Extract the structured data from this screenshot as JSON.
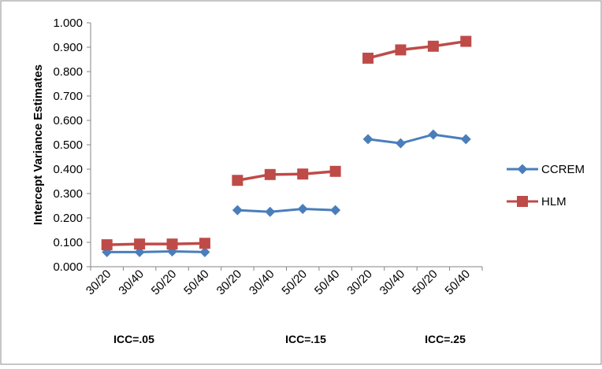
{
  "chart_data": {
    "type": "line",
    "ylabel": "Intercept Variance Estimates",
    "ylim": [
      0,
      1.0
    ],
    "yticks": [
      "0.000",
      "0.100",
      "0.200",
      "0.300",
      "0.400",
      "0.500",
      "0.600",
      "0.700",
      "0.800",
      "0.900",
      "1.000"
    ],
    "grid": false,
    "legend_position": "right",
    "groups": [
      "ICC=.05",
      "ICC=.15",
      "ICC=.25"
    ],
    "categories": [
      "30/20",
      "30/40",
      "50/20",
      "50/40",
      "30/20",
      "30/40",
      "50/20",
      "50/40",
      "30/20",
      "30/40",
      "50/20",
      "50/40"
    ],
    "series": [
      {
        "name": "CCREM",
        "color": "#4A7EBB",
        "marker": "diamond",
        "values": [
          [
            0.06,
            0.06,
            0.063,
            0.06
          ],
          [
            0.232,
            0.225,
            0.237,
            0.232
          ],
          [
            0.523,
            0.506,
            0.542,
            0.523
          ]
        ]
      },
      {
        "name": "HLM",
        "color": "#BE4B48",
        "marker": "square",
        "values": [
          [
            0.09,
            0.093,
            0.093,
            0.096
          ],
          [
            0.354,
            0.378,
            0.38,
            0.391
          ],
          [
            0.855,
            0.889,
            0.904,
            0.924
          ]
        ]
      }
    ]
  }
}
